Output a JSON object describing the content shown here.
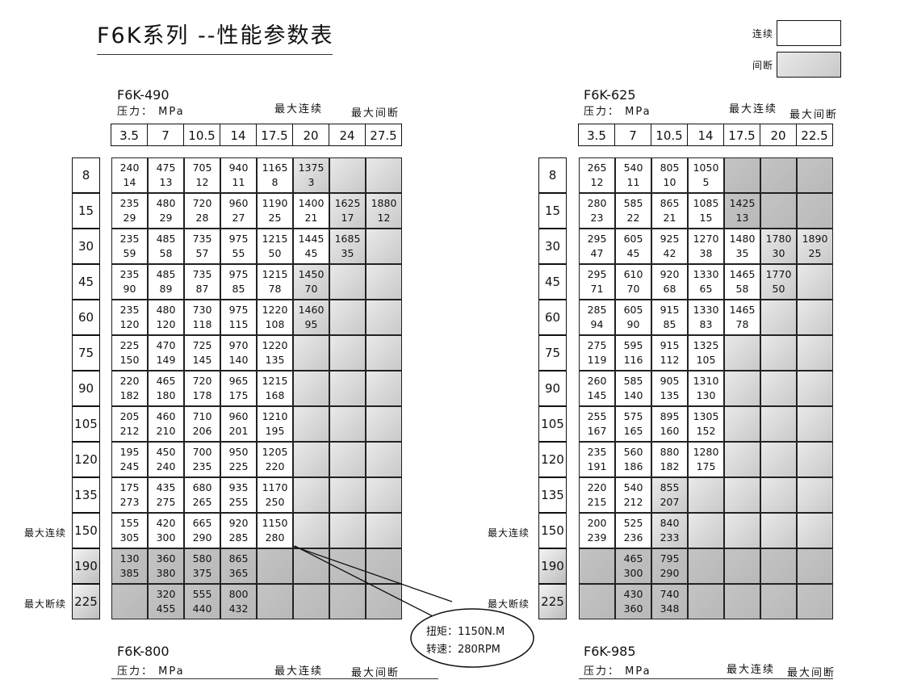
{
  "title": "F6K系列 --性能参数表",
  "legend": {
    "continuous": "连续",
    "intermittent": "间断",
    "colors": {
      "continuous": "#ffffff",
      "intermittent": "#c8c8c8"
    }
  },
  "pressure_label": "压力： MPa",
  "max_cont": "最大连续",
  "max_int": "最大间断",
  "max_int_side": "最大断续",
  "callout": {
    "torque": "扭矩：1150N.M",
    "speed": "转速：280RPM"
  },
  "tables": [
    {
      "model": "F6K-490",
      "pressures": [
        "3.5",
        "7",
        "10.5",
        "14",
        "17.5",
        "20",
        "24",
        "27.5"
      ],
      "rows": [
        {
          "disp": "8",
          "shade": "wwwwwggg",
          "cells": [
            [
              "240",
              "14"
            ],
            [
              "475",
              "13"
            ],
            [
              "705",
              "12"
            ],
            [
              "940",
              "11"
            ],
            [
              "1165",
              "8"
            ],
            [
              "1375",
              "3"
            ],
            null,
            null
          ]
        },
        {
          "disp": "15",
          "shade": "wwwwwwgg",
          "cells": [
            [
              "235",
              "29"
            ],
            [
              "480",
              "29"
            ],
            [
              "720",
              "28"
            ],
            [
              "960",
              "27"
            ],
            [
              "1190",
              "25"
            ],
            [
              "1400",
              "21"
            ],
            [
              "1625",
              "17"
            ],
            [
              "1880",
              "12"
            ]
          ]
        },
        {
          "disp": "30",
          "shade": "wwwwwwgg",
          "cells": [
            [
              "235",
              "59"
            ],
            [
              "485",
              "58"
            ],
            [
              "735",
              "57"
            ],
            [
              "975",
              "55"
            ],
            [
              "1215",
              "50"
            ],
            [
              "1445",
              "45"
            ],
            [
              "1685",
              "35"
            ],
            null
          ]
        },
        {
          "disp": "45",
          "shade": "wwwwwggg",
          "cells": [
            [
              "235",
              "90"
            ],
            [
              "485",
              "89"
            ],
            [
              "735",
              "87"
            ],
            [
              "975",
              "85"
            ],
            [
              "1215",
              "78"
            ],
            [
              "1450",
              "70"
            ],
            null,
            null
          ]
        },
        {
          "disp": "60",
          "shade": "wwwwwggg",
          "cells": [
            [
              "235",
              "120"
            ],
            [
              "480",
              "120"
            ],
            [
              "730",
              "118"
            ],
            [
              "975",
              "115"
            ],
            [
              "1220",
              "108"
            ],
            [
              "1460",
              "95"
            ],
            null,
            null
          ]
        },
        {
          "disp": "75",
          "shade": "wwwwwggg",
          "cells": [
            [
              "225",
              "150"
            ],
            [
              "470",
              "149"
            ],
            [
              "725",
              "145"
            ],
            [
              "970",
              "140"
            ],
            [
              "1220",
              "135"
            ],
            null,
            null,
            null
          ]
        },
        {
          "disp": "90",
          "shade": "wwwwwggg",
          "cells": [
            [
              "220",
              "182"
            ],
            [
              "465",
              "180"
            ],
            [
              "720",
              "178"
            ],
            [
              "965",
              "175"
            ],
            [
              "1215",
              "168"
            ],
            null,
            null,
            null
          ]
        },
        {
          "disp": "105",
          "shade": "wwwwwggg",
          "cells": [
            [
              "205",
              "212"
            ],
            [
              "460",
              "210"
            ],
            [
              "710",
              "206"
            ],
            [
              "960",
              "201"
            ],
            [
              "1210",
              "195"
            ],
            null,
            null,
            null
          ]
        },
        {
          "disp": "120",
          "shade": "wwwwwggg",
          "cells": [
            [
              "195",
              "245"
            ],
            [
              "450",
              "240"
            ],
            [
              "700",
              "235"
            ],
            [
              "950",
              "225"
            ],
            [
              "1205",
              "220"
            ],
            null,
            null,
            null
          ]
        },
        {
          "disp": "135",
          "shade": "wwwwwggg",
          "cells": [
            [
              "175",
              "273"
            ],
            [
              "435",
              "275"
            ],
            [
              "680",
              "265"
            ],
            [
              "935",
              "255"
            ],
            [
              "1170",
              "250"
            ],
            null,
            null,
            null
          ]
        },
        {
          "disp": "150",
          "shade": "wwwwwggg",
          "cells": [
            [
              "155",
              "305"
            ],
            [
              "420",
              "300"
            ],
            [
              "665",
              "290"
            ],
            [
              "920",
              "285"
            ],
            [
              "1150",
              "280"
            ],
            null,
            null,
            null
          ]
        },
        {
          "disp": "190",
          "shade": "dddddddd",
          "cells": [
            [
              "130",
              "385"
            ],
            [
              "360",
              "380"
            ],
            [
              "580",
              "375"
            ],
            [
              "865",
              "365"
            ],
            null,
            null,
            null,
            null
          ]
        },
        {
          "disp": "225",
          "shade": "dddddddd",
          "cells": [
            null,
            [
              "320",
              "455"
            ],
            [
              "555",
              "440"
            ],
            [
              "800",
              "432"
            ],
            null,
            null,
            null,
            null
          ]
        }
      ]
    },
    {
      "model": "F6K-625",
      "pressures": [
        "3.5",
        "7",
        "10.5",
        "14",
        "17.5",
        "20",
        "22.5"
      ],
      "rows": [
        {
          "disp": "8",
          "shade": "wwwwddd",
          "cells": [
            [
              "265",
              "12"
            ],
            [
              "540",
              "11"
            ],
            [
              "805",
              "10"
            ],
            [
              "1050",
              "5"
            ],
            null,
            null,
            null
          ]
        },
        {
          "disp": "15",
          "shade": "wwwwddd",
          "cells": [
            [
              "280",
              "23"
            ],
            [
              "585",
              "22"
            ],
            [
              "865",
              "21"
            ],
            [
              "1085",
              "15"
            ],
            [
              "1425",
              "13"
            ],
            null,
            null
          ]
        },
        {
          "disp": "30",
          "shade": "wwwwwgg",
          "cells": [
            [
              "295",
              "47"
            ],
            [
              "605",
              "45"
            ],
            [
              "925",
              "42"
            ],
            [
              "1270",
              "38"
            ],
            [
              "1480",
              "35"
            ],
            [
              "1780",
              "30"
            ],
            [
              "1890",
              "25"
            ]
          ]
        },
        {
          "disp": "45",
          "shade": "wwwwwgg",
          "cells": [
            [
              "295",
              "71"
            ],
            [
              "610",
              "70"
            ],
            [
              "920",
              "68"
            ],
            [
              "1330",
              "65"
            ],
            [
              "1465",
              "58"
            ],
            [
              "1770",
              "50"
            ],
            null
          ]
        },
        {
          "disp": "60",
          "shade": "wwwwwgg",
          "cells": [
            [
              "285",
              "94"
            ],
            [
              "605",
              "90"
            ],
            [
              "915",
              "85"
            ],
            [
              "1330",
              "83"
            ],
            [
              "1465",
              "78"
            ],
            null,
            null
          ]
        },
        {
          "disp": "75",
          "shade": "wwwwggg",
          "cells": [
            [
              "275",
              "119"
            ],
            [
              "595",
              "116"
            ],
            [
              "915",
              "112"
            ],
            [
              "1325",
              "105"
            ],
            null,
            null,
            null
          ]
        },
        {
          "disp": "90",
          "shade": "wwwwggg",
          "cells": [
            [
              "260",
              "145"
            ],
            [
              "585",
              "140"
            ],
            [
              "905",
              "135"
            ],
            [
              "1310",
              "130"
            ],
            null,
            null,
            null
          ]
        },
        {
          "disp": "105",
          "shade": "wwwwggg",
          "cells": [
            [
              "255",
              "167"
            ],
            [
              "575",
              "165"
            ],
            [
              "895",
              "160"
            ],
            [
              "1305",
              "152"
            ],
            null,
            null,
            null
          ]
        },
        {
          "disp": "120",
          "shade": "wwwwggg",
          "cells": [
            [
              "235",
              "191"
            ],
            [
              "560",
              "186"
            ],
            [
              "880",
              "182"
            ],
            [
              "1280",
              "175"
            ],
            null,
            null,
            null
          ]
        },
        {
          "disp": "135",
          "shade": "wwggggg",
          "cells": [
            [
              "220",
              "215"
            ],
            [
              "540",
              "212"
            ],
            [
              "855",
              "207"
            ],
            null,
            null,
            null,
            null
          ]
        },
        {
          "disp": "150",
          "shade": "wwggggg",
          "cells": [
            [
              "200",
              "239"
            ],
            [
              "525",
              "236"
            ],
            [
              "840",
              "233"
            ],
            null,
            null,
            null,
            null
          ]
        },
        {
          "disp": "190",
          "shade": "ddddddd",
          "cells": [
            null,
            [
              "465",
              "300"
            ],
            [
              "795",
              "290"
            ],
            null,
            null,
            null,
            null
          ]
        },
        {
          "disp": "225",
          "shade": "ddddddd",
          "cells": [
            null,
            [
              "430",
              "360"
            ],
            [
              "740",
              "348"
            ],
            null,
            null,
            null,
            null
          ]
        }
      ]
    }
  ],
  "bottom": [
    {
      "model": "F6K-800"
    },
    {
      "model": "F6K-985"
    }
  ]
}
